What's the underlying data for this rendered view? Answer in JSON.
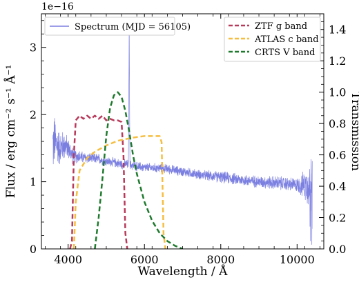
{
  "chart_data": {
    "type": "line",
    "offset_text": "1e−16",
    "xlabel": "Wavelength / Å",
    "ylabel": "Flux / erg cm⁻² s⁻¹ Å⁻¹",
    "y2label": "Transmission",
    "xlim": [
      3300,
      10700
    ],
    "ylim": [
      0,
      3.5
    ],
    "y2lim": [
      0,
      1.5
    ],
    "x_ticks": [
      4000,
      6000,
      8000,
      10000
    ],
    "x_tick_labels": [
      "4000",
      "6000",
      "8000",
      "10000"
    ],
    "y_ticks": [
      0,
      1,
      2,
      3
    ],
    "y_tick_labels": [
      "0",
      "1",
      "2",
      "3"
    ],
    "y2_ticks": [
      0,
      0.2,
      0.4,
      0.6,
      0.8,
      1.0,
      1.2,
      1.4
    ],
    "y2_tick_labels": [
      "0.0",
      "0.2",
      "0.4",
      "0.6",
      "0.8",
      "1.0",
      "1.2",
      "1.4"
    ],
    "spectrum": {
      "name": "Spectrum (MJD = 56105)",
      "color": "#7b7fe0",
      "x": [
        3600,
        3650,
        3700,
        3800,
        3900,
        4000,
        4100,
        4200,
        4400,
        4600,
        4800,
        5000,
        5200,
        5400,
        5580,
        5600,
        5620,
        5800,
        6000,
        6500,
        7000,
        7500,
        8000,
        8500,
        9000,
        9500,
        10000,
        10200,
        10300,
        10400
      ],
      "y": [
        1.55,
        1.6,
        1.55,
        1.5,
        1.55,
        1.5,
        1.4,
        1.38,
        1.36,
        1.35,
        1.34,
        1.3,
        1.29,
        1.26,
        1.26,
        3.2,
        1.25,
        1.23,
        1.21,
        1.2,
        1.15,
        1.1,
        1.07,
        1.03,
        1.0,
        0.98,
        0.95,
        0.95,
        0.93,
        0.95
      ],
      "noise": [
        0.5,
        0.45,
        0.35,
        0.3,
        0.25,
        0.18,
        0.15,
        0.12,
        0.1,
        0.09,
        0.09,
        0.08,
        0.08,
        0.08,
        0.08,
        0.08,
        0.08,
        0.08,
        0.08,
        0.08,
        0.08,
        0.08,
        0.1,
        0.1,
        0.1,
        0.12,
        0.12,
        0.25,
        0.35,
        0.45
      ]
    },
    "filters": [
      {
        "name": "ZTF g band",
        "color": "#b83a5b",
        "x": [
          4050,
          4100,
          4150,
          4200,
          4300,
          4400,
          4500,
          4600,
          4700,
          4800,
          4900,
          5000,
          5100,
          5200,
          5300,
          5400,
          5450,
          5500,
          5550
        ],
        "y": [
          0.0,
          0.05,
          0.6,
          0.82,
          0.85,
          0.83,
          0.85,
          0.83,
          0.85,
          0.83,
          0.85,
          0.82,
          0.83,
          0.82,
          0.82,
          0.81,
          0.6,
          0.1,
          0.0
        ]
      },
      {
        "name": "ATLAS c band",
        "color": "#f5be41",
        "x": [
          4150,
          4200,
          4300,
          4500,
          4700,
          5000,
          5300,
          5500,
          5700,
          6000,
          6300,
          6400,
          6450,
          6500,
          6550
        ],
        "y": [
          0.0,
          0.3,
          0.5,
          0.58,
          0.62,
          0.66,
          0.69,
          0.7,
          0.71,
          0.72,
          0.72,
          0.72,
          0.68,
          0.1,
          0.0
        ]
      },
      {
        "name": "CRTS V band",
        "color": "#1f7a2e",
        "x": [
          4700,
          4800,
          4900,
          5000,
          5100,
          5200,
          5300,
          5400,
          5500,
          5600,
          5700,
          5800,
          6000,
          6200,
          6400,
          6600,
          6800,
          7000
        ],
        "y": [
          0.0,
          0.2,
          0.45,
          0.72,
          0.9,
          0.98,
          1.0,
          0.97,
          0.88,
          0.75,
          0.6,
          0.48,
          0.3,
          0.18,
          0.1,
          0.05,
          0.02,
          0.0
        ]
      }
    ],
    "legend_left": {
      "position": "top-left",
      "entries": [
        "Spectrum (MJD = 56105)"
      ]
    },
    "legend_right": {
      "position": "top-right",
      "entries": [
        "ZTF g band",
        "ATLAS c band",
        "CRTS V band"
      ]
    }
  }
}
